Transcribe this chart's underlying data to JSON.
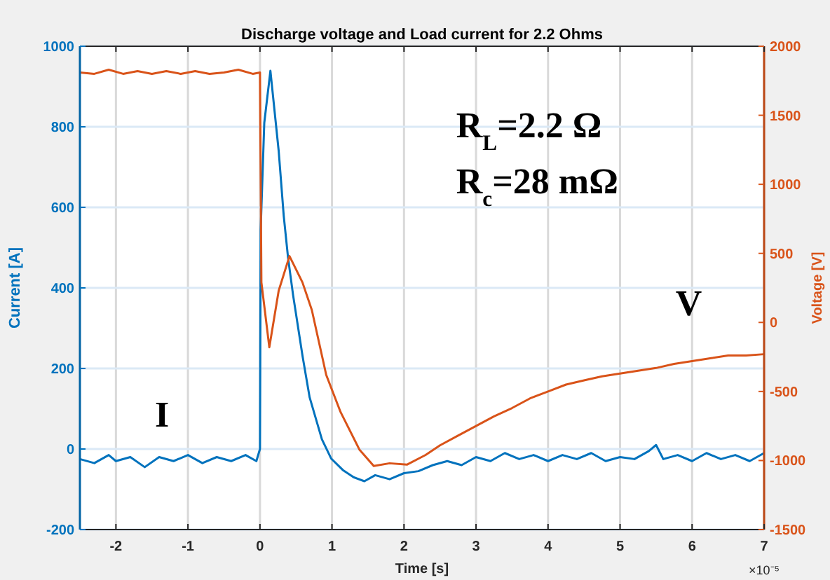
{
  "chart_data": {
    "type": "line",
    "title": "Discharge voltage and Load current for 2.2 Ohms",
    "xlabel": "Time [s]",
    "ylabel": "Current [A]",
    "y2label": "Voltage [V]",
    "xlim": [
      -2.5,
      7
    ],
    "xticks": [
      -2,
      -1,
      0,
      1,
      2,
      3,
      4,
      5,
      6,
      7
    ],
    "ylim": [
      -200,
      1000
    ],
    "yticks": [
      -200,
      0,
      200,
      400,
      600,
      800,
      1000
    ],
    "y2lim": [
      -1500,
      2000
    ],
    "y2ticks": [
      -1500,
      -1000,
      -500,
      0,
      500,
      1000,
      1500,
      2000
    ],
    "grid": true,
    "series": [
      {
        "color": "#0072bd",
        "x": [
          -2.5,
          -2.3,
          -2.1,
          -2.0,
          -1.8,
          -1.6,
          -1.4,
          -1.2,
          -1.0,
          -0.8,
          -0.6,
          -0.4,
          -0.2,
          -0.05,
          0,
          0.01,
          0.06,
          0.145,
          0.26,
          0.33,
          0.39,
          0.46,
          0.59,
          0.69,
          0.86,
          0.99,
          1.15,
          1.3,
          1.45,
          1.6,
          1.8,
          2.0,
          2.2,
          2.4,
          2.6,
          2.8,
          3.0,
          3.2,
          3.4,
          3.6,
          3.8,
          4.0,
          4.2,
          4.4,
          4.6,
          4.8,
          5.0,
          5.2,
          5.4,
          5.5,
          5.6,
          5.8,
          6.0,
          6.2,
          6.4,
          6.6,
          6.8,
          7.0
        ],
        "values": [
          -25,
          -35,
          -15,
          -30,
          -20,
          -45,
          -20,
          -30,
          -15,
          -35,
          -20,
          -30,
          -15,
          -30,
          0,
          545,
          810,
          939,
          740,
          579,
          475,
          382,
          232,
          128,
          24,
          -24,
          -52,
          -70,
          -80,
          -65,
          -75,
          -60,
          -55,
          -40,
          -30,
          -40,
          -20,
          -30,
          -10,
          -25,
          -15,
          -30,
          -15,
          -25,
          -10,
          -30,
          -20,
          -25,
          -5,
          10,
          -25,
          -15,
          -30,
          -10,
          -25,
          -15,
          -30,
          -10
        ]
      },
      {
        "color": "#d95319",
        "axis": "y2",
        "x": [
          -2.5,
          -2.3,
          -2.1,
          -1.9,
          -1.7,
          -1.5,
          -1.3,
          -1.1,
          -0.9,
          -0.7,
          -0.5,
          -0.3,
          -0.1,
          0.0,
          0.02,
          0.13,
          0.26,
          0.41,
          0.59,
          0.72,
          0.92,
          1.12,
          1.38,
          1.58,
          1.8,
          2.04,
          2.3,
          2.5,
          2.75,
          3.0,
          3.25,
          3.5,
          3.75,
          4.0,
          4.25,
          4.5,
          4.75,
          5.0,
          5.25,
          5.5,
          5.75,
          6.0,
          6.25,
          6.5,
          6.75,
          7.0
        ],
        "values": [
          1810,
          1800,
          1830,
          1800,
          1820,
          1800,
          1820,
          1800,
          1820,
          1800,
          1810,
          1830,
          1800,
          1810,
          290,
          -180,
          230,
          480,
          290,
          90,
          -380,
          -650,
          -920,
          -1040,
          -1020,
          -1030,
          -960,
          -890,
          -820,
          -750,
          -680,
          -620,
          -550,
          -500,
          -450,
          -420,
          -390,
          -370,
          -350,
          -330,
          -300,
          -280,
          -260,
          -240,
          -240,
          -230
        ]
      }
    ],
    "annotations": [
      "R$_{L}$=2.2 Ω",
      "R$_{c}$=28 mΩ",
      "×10⁻⁵",
      "I",
      "V"
    ]
  }
}
